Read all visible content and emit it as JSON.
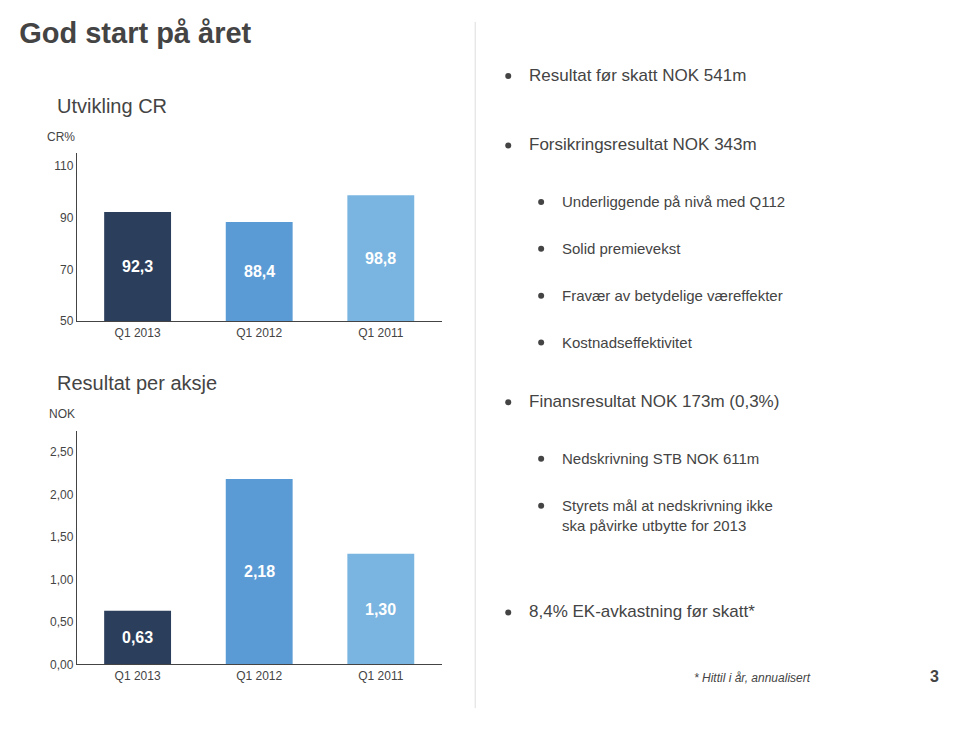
{
  "title": "God start på året",
  "chart_data": [
    {
      "type": "bar",
      "title": "Utvikling CR",
      "y_label": "CR%",
      "categories": [
        "Q1 2013",
        "Q1 2012",
        "Q1 2011"
      ],
      "values": [
        92.3,
        88.4,
        98.8
      ],
      "value_labels": [
        "92,3",
        "88,4",
        "98,8"
      ],
      "data_labels": true,
      "colors": [
        "#2b3f5c",
        "#5b9bd5",
        "#7ab4e0"
      ],
      "ylim": [
        50,
        115
      ],
      "yticks": [
        50,
        70,
        90,
        110
      ],
      "grid": false
    },
    {
      "type": "bar",
      "title": "Resultat per aksje",
      "y_label": "NOK",
      "categories": [
        "Q1 2013",
        "Q1 2012",
        "Q1 2011"
      ],
      "values": [
        0.63,
        2.18,
        1.3
      ],
      "value_labels": [
        "0,63",
        "2,18",
        "1,30"
      ],
      "data_labels": true,
      "colors": [
        "#2b3f5c",
        "#5b9bd5",
        "#7ab4e0"
      ],
      "ylim": [
        0,
        2.75
      ],
      "yticks": [
        {
          "value": 0.0,
          "label": "0,00"
        },
        {
          "value": 0.5,
          "label": "0,50"
        },
        {
          "value": 1.0,
          "label": "1,00"
        },
        {
          "value": 1.5,
          "label": "1,50"
        },
        {
          "value": 2.0,
          "label": "2,00"
        },
        {
          "value": 2.5,
          "label": "2,50"
        }
      ],
      "grid": false
    }
  ],
  "bullets": [
    {
      "level": 1,
      "text": "Resultat før skatt NOK 541m"
    },
    {
      "level": 1,
      "text": "Forsikringsresultat NOK 343m"
    },
    {
      "level": 2,
      "text": "Underliggende på nivå med Q112"
    },
    {
      "level": 2,
      "text": "Solid premievekst"
    },
    {
      "level": 2,
      "text": "Fravær av betydelige væreffekter"
    },
    {
      "level": 2,
      "text": "Kostnadseffektivitet"
    },
    {
      "level": 1,
      "text": "Finansresultat NOK 173m (0,3%)"
    },
    {
      "level": 2,
      "text": "Nedskrivning STB NOK 611m"
    },
    {
      "level": 2,
      "text": "Styrets mål at nedskrivning ikke\nska påvirke utbytte for 2013"
    },
    {
      "level": 1,
      "text": "8,4% EK-avkastning før skatt*"
    }
  ],
  "footnote": "* Hittil i år, annualisert",
  "page_number": "3"
}
